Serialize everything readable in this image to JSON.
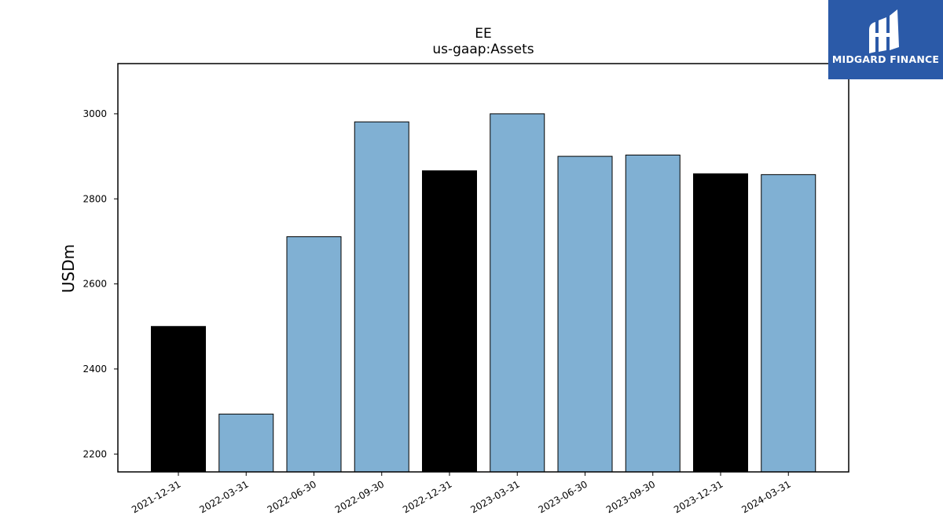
{
  "brand": {
    "name": "MIDGARD FINANCE",
    "background": "#2b5aa8"
  },
  "chart_data": {
    "type": "bar",
    "title": "EE",
    "subtitle": "us-gaap:Assets",
    "xlabel": "",
    "ylabel": "USDm",
    "categories": [
      "2021-12-31",
      "2022-03-31",
      "2022-06-30",
      "2022-09-30",
      "2022-12-31",
      "2023-03-31",
      "2023-06-30",
      "2023-09-30",
      "2023-12-31",
      "2024-03-31"
    ],
    "values": [
      2500,
      2294,
      2711,
      2981,
      2866,
      3000,
      2900,
      2903,
      2859,
      2857
    ],
    "colors": [
      "#000000",
      "#80b0d3",
      "#80b0d3",
      "#80b0d3",
      "#000000",
      "#80b0d3",
      "#80b0d3",
      "#80b0d3",
      "#000000",
      "#80b0d3"
    ],
    "ylim": [
      2158,
      3118
    ],
    "yticks": [
      2200,
      2400,
      2600,
      2800,
      3000
    ],
    "grid": false,
    "legend": "none"
  }
}
